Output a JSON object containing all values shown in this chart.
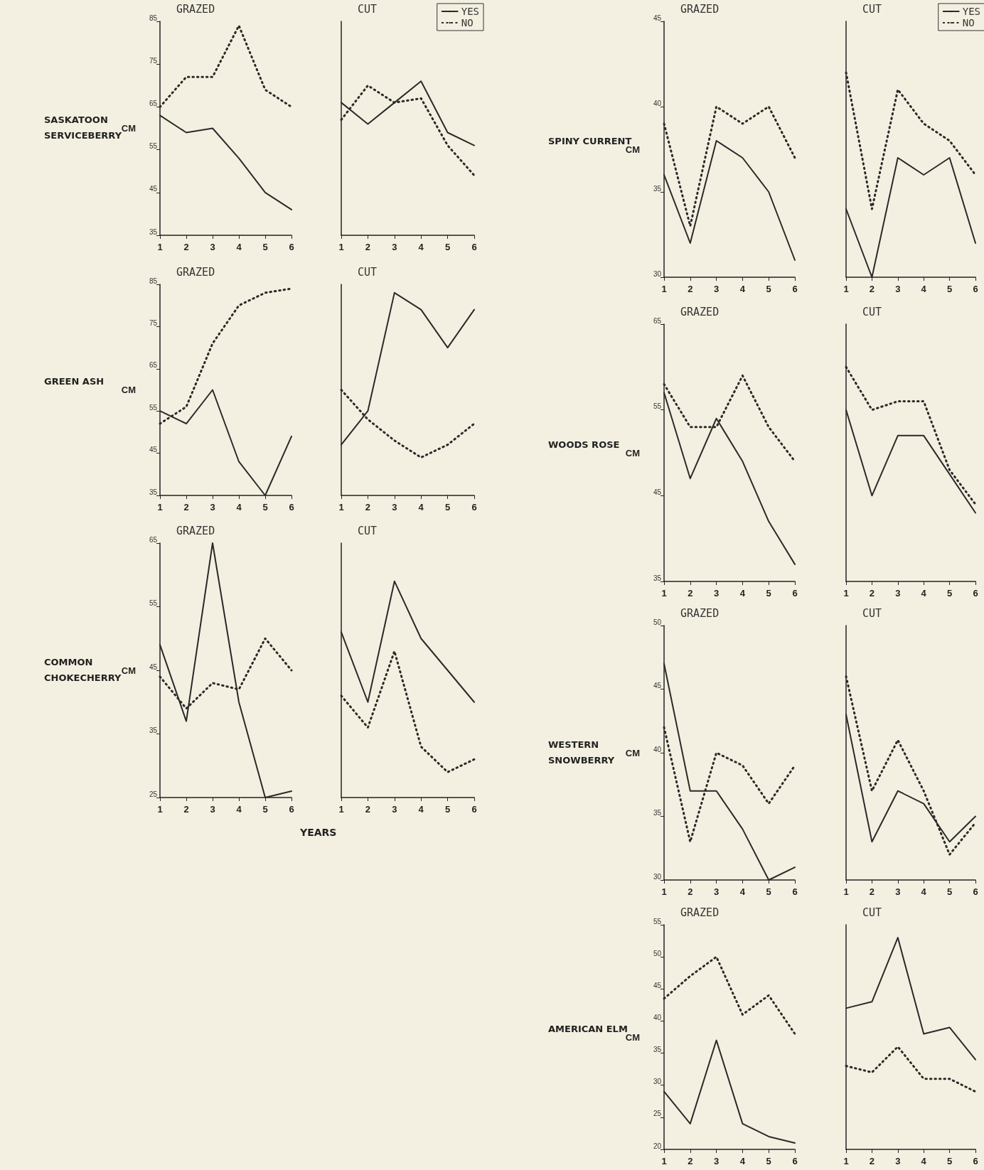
{
  "chart_data": [
    {
      "type": "line",
      "title": "GRAZED",
      "subtitle": "SASKATOON SERVICEBERRY",
      "ylabel": "CM",
      "categories": [
        "1",
        "2",
        "3",
        "4",
        "5",
        "6"
      ],
      "ylim": [
        35,
        85
      ],
      "yticks": [
        35,
        45,
        55,
        65,
        75,
        85
      ],
      "marker": "none",
      "series": [
        {
          "color": "#2a2a2a",
          "line_style": "solid",
          "values": [
            63,
            59,
            60,
            53,
            45,
            41
          ]
        },
        {
          "color": "#2a2a2a",
          "line_style": "dotted",
          "values": [
            65,
            72,
            72,
            84,
            69,
            65
          ]
        }
      ]
    },
    {
      "type": "line",
      "title": "CUT",
      "categories": [
        "1",
        "2",
        "3",
        "4",
        "5",
        "6"
      ],
      "ylim": [
        35,
        85
      ],
      "tick_labels": "x",
      "legend": "top right",
      "marker": "none",
      "series": [
        {
          "name": "YES",
          "color": "#2a2a2a",
          "line_style": "solid",
          "values": [
            66,
            61,
            66,
            71,
            59,
            56
          ]
        },
        {
          "name": "NO",
          "color": "#2a2a2a",
          "line_style": "dotted",
          "values": [
            62,
            70,
            66,
            67,
            56,
            49
          ]
        }
      ]
    },
    {
      "type": "line",
      "title": "GRAZED",
      "subtitle": "GREEN ASH",
      "ylabel": "CM",
      "categories": [
        "1",
        "2",
        "3",
        "4",
        "5",
        "6"
      ],
      "ylim": [
        35,
        85
      ],
      "yticks": [
        35,
        45,
        55,
        65,
        75,
        85
      ],
      "marker": "none",
      "series": [
        {
          "color": "#2a2a2a",
          "line_style": "solid",
          "values": [
            55,
            52,
            60,
            43,
            35,
            49
          ]
        },
        {
          "color": "#2a2a2a",
          "line_style": "dotted",
          "values": [
            52,
            56,
            71,
            80,
            83,
            84
          ]
        }
      ]
    },
    {
      "type": "line",
      "title": "CUT",
      "categories": [
        "1",
        "2",
        "3",
        "4",
        "5",
        "6"
      ],
      "ylim": [
        35,
        85
      ],
      "tick_labels": "x",
      "marker": "none",
      "series": [
        {
          "color": "#2a2a2a",
          "line_style": "solid",
          "values": [
            47,
            55,
            83,
            79,
            70,
            79
          ]
        },
        {
          "color": "#2a2a2a",
          "line_style": "dotted",
          "values": [
            60,
            53,
            48,
            44,
            47,
            52
          ]
        }
      ]
    },
    {
      "type": "line",
      "title": "GRAZED",
      "subtitle": "COMMON CHOKECHERRY",
      "ylabel": "CM",
      "categories": [
        "1",
        "2",
        "3",
        "4",
        "5",
        "6"
      ],
      "ylim": [
        25,
        65
      ],
      "yticks": [
        25,
        35,
        45,
        55,
        65
      ],
      "marker": "none",
      "series": [
        {
          "color": "#2a2a2a",
          "line_style": "solid",
          "values": [
            49,
            37,
            65,
            40,
            25,
            26
          ]
        },
        {
          "color": "#2a2a2a",
          "line_style": "dotted",
          "values": [
            44,
            39,
            43,
            42,
            50,
            45
          ]
        }
      ]
    },
    {
      "type": "line",
      "title": "CUT",
      "xlabel": "YEARS",
      "categories": [
        "1",
        "2",
        "3",
        "4",
        "5",
        "6"
      ],
      "ylim": [
        25,
        65
      ],
      "tick_labels": "x",
      "marker": "none",
      "series": [
        {
          "color": "#2a2a2a",
          "line_style": "solid",
          "values": [
            51,
            40,
            59,
            50,
            45,
            40
          ]
        },
        {
          "color": "#2a2a2a",
          "line_style": "dotted",
          "values": [
            41,
            36,
            48,
            33,
            29,
            31
          ]
        }
      ]
    },
    {
      "type": "line",
      "title": "GRAZED",
      "subtitle": "SPINY CURRENT",
      "ylabel": "CM",
      "categories": [
        "1",
        "2",
        "3",
        "4",
        "5",
        "6"
      ],
      "ylim": [
        30,
        45
      ],
      "yticks": [
        30,
        35,
        40,
        45
      ],
      "marker": "none",
      "series": [
        {
          "color": "#2a2a2a",
          "line_style": "solid",
          "values": [
            36,
            32,
            38,
            37,
            35,
            31
          ]
        },
        {
          "color": "#2a2a2a",
          "line_style": "dotted",
          "values": [
            39,
            33,
            40,
            39,
            40,
            37
          ]
        }
      ]
    },
    {
      "type": "line",
      "title": "CUT",
      "categories": [
        "1",
        "2",
        "3",
        "4",
        "5",
        "6"
      ],
      "ylim": [
        30,
        45
      ],
      "tick_labels": "x",
      "legend": "top right",
      "marker": "none",
      "series": [
        {
          "name": "YES",
          "color": "#2a2a2a",
          "line_style": "solid",
          "values": [
            34,
            30,
            37,
            36,
            37,
            32
          ]
        },
        {
          "name": "NO",
          "color": "#2a2a2a",
          "line_style": "dotted",
          "values": [
            42,
            34,
            41,
            39,
            38,
            36
          ]
        }
      ]
    },
    {
      "type": "line",
      "title": "GRAZED",
      "subtitle": "WOODS ROSE",
      "ylabel": "CM",
      "categories": [
        "1",
        "2",
        "3",
        "4",
        "5",
        "6"
      ],
      "ylim": [
        35,
        65
      ],
      "yticks": [
        35,
        45,
        55,
        65
      ],
      "marker": "none",
      "series": [
        {
          "color": "#2a2a2a",
          "line_style": "solid",
          "values": [
            57,
            47,
            54,
            49,
            42,
            37
          ]
        },
        {
          "color": "#2a2a2a",
          "line_style": "dotted",
          "values": [
            58,
            53,
            53,
            59,
            53,
            49
          ]
        }
      ]
    },
    {
      "type": "line",
      "title": "CUT",
      "categories": [
        "1",
        "2",
        "3",
        "4",
        "5",
        "6"
      ],
      "ylim": [
        35,
        65
      ],
      "tick_labels": "x",
      "marker": "none",
      "series": [
        {
          "color": "#2a2a2a",
          "line_style": "solid",
          "values": [
            55,
            45,
            52,
            52,
            47.5,
            43
          ]
        },
        {
          "color": "#2a2a2a",
          "line_style": "dotted",
          "values": [
            60,
            55,
            56,
            56,
            48,
            44
          ]
        }
      ]
    },
    {
      "type": "line",
      "title": "GRAZED",
      "subtitle": "WESTERN SNOWBERRY",
      "ylabel": "CM",
      "categories": [
        "1",
        "2",
        "3",
        "4",
        "5",
        "6"
      ],
      "ylim": [
        30,
        50
      ],
      "yticks": [
        30,
        35,
        40,
        45,
        50
      ],
      "marker": "none",
      "series": [
        {
          "color": "#2a2a2a",
          "line_style": "solid",
          "values": [
            47,
            37,
            37,
            34,
            30,
            31
          ]
        },
        {
          "color": "#2a2a2a",
          "line_style": "dotted",
          "values": [
            42,
            33,
            40,
            39,
            36,
            39
          ]
        }
      ]
    },
    {
      "type": "line",
      "title": "CUT",
      "categories": [
        "1",
        "2",
        "3",
        "4",
        "5",
        "6"
      ],
      "ylim": [
        30,
        50
      ],
      "tick_labels": "x",
      "marker": "none",
      "series": [
        {
          "color": "#2a2a2a",
          "line_style": "solid",
          "values": [
            43,
            33,
            37,
            36,
            33,
            35
          ]
        },
        {
          "color": "#2a2a2a",
          "line_style": "dotted",
          "values": [
            46,
            37,
            41,
            37,
            32,
            34.5
          ]
        }
      ]
    },
    {
      "type": "line",
      "title": "GRAZED",
      "subtitle": "AMERICAN ELM",
      "ylabel": "CM",
      "categories": [
        "1",
        "2",
        "3",
        "4",
        "5",
        "6"
      ],
      "ylim": [
        20,
        55
      ],
      "yticks": [
        20,
        25,
        30,
        35,
        40,
        45,
        50,
        55
      ],
      "marker": "none",
      "series": [
        {
          "color": "#2a2a2a",
          "line_style": "solid",
          "values": [
            29,
            24,
            37,
            24,
            22,
            21
          ]
        },
        {
          "color": "#2a2a2a",
          "line_style": "dotted",
          "values": [
            43.5,
            47,
            50,
            41,
            44,
            38
          ]
        }
      ]
    },
    {
      "type": "line",
      "title": "CUT",
      "categories": [
        "1",
        "2",
        "3",
        "4",
        "5",
        "6"
      ],
      "ylim": [
        20,
        55
      ],
      "tick_labels": "x",
      "marker": "none",
      "series": [
        {
          "color": "#2a2a2a",
          "line_style": "solid",
          "values": [
            42,
            43,
            53,
            38,
            39,
            34
          ]
        },
        {
          "color": "#2a2a2a",
          "line_style": "dotted",
          "values": [
            33,
            32,
            36,
            31,
            31,
            29
          ]
        }
      ]
    }
  ]
}
